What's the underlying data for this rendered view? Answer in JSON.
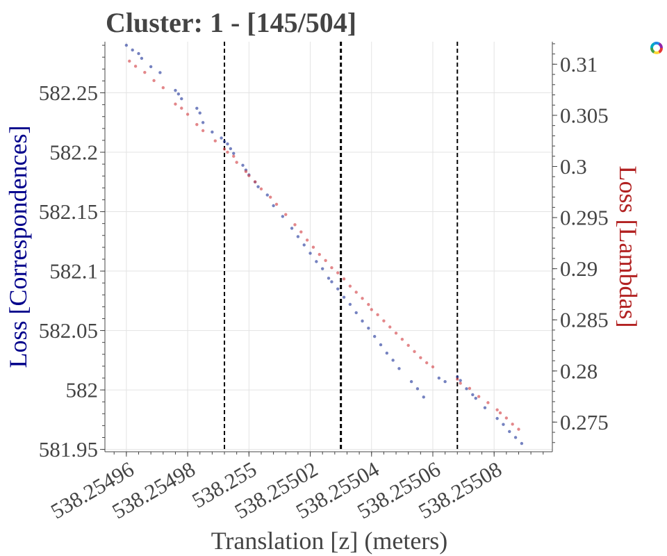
{
  "chart_data": {
    "type": "scatter",
    "title": "Cluster: 1 - [145/504]",
    "xlabel": "Translation [z] (meters)",
    "ylabel_left": "Loss [Correspondences]",
    "ylabel_right": "Loss [Lambdas]",
    "xlim": [
      538.254953,
      538.255099
    ],
    "ylim_left": [
      581.948,
      582.293
    ],
    "ylim_right": [
      0.2721,
      0.3122
    ],
    "x_ticks": [
      "538.25496",
      "538.25498",
      "538.255",
      "538.25502",
      "538.25504",
      "538.25506",
      "538.25508"
    ],
    "x_tick_values": [
      538.25496,
      538.25498,
      538.255,
      538.25502,
      538.25504,
      538.25506,
      538.25508
    ],
    "y_left_ticks": [
      "581.95",
      "582",
      "582.05",
      "582.1",
      "582.15",
      "582.2",
      "582.25"
    ],
    "y_left_tick_values": [
      581.95,
      582.0,
      582.05,
      582.1,
      582.15,
      582.2,
      582.25
    ],
    "y_right_ticks": [
      "0.275",
      "0.28",
      "0.285",
      "0.29",
      "0.295",
      "0.3",
      "0.305",
      "0.31"
    ],
    "y_right_tick_values": [
      0.275,
      0.28,
      0.285,
      0.29,
      0.295,
      0.3,
      0.305,
      0.31
    ],
    "vlines": [
      538.254992,
      538.25503,
      538.255068
    ],
    "grid": true,
    "series": [
      {
        "axis": "left",
        "color": "#2b3f9e",
        "x": [
          538.25496,
          538.254962,
          538.254964,
          538.254965,
          538.254968,
          538.254971,
          538.254976,
          538.254977,
          538.254978,
          538.254983,
          538.254984,
          538.254985,
          538.254988,
          538.254991,
          538.254992,
          538.254993,
          538.254994,
          538.254995,
          538.254998,
          538.254999,
          538.255,
          538.255002,
          538.255003,
          538.255006,
          538.255008,
          538.255011,
          538.255014,
          538.255016,
          538.255018,
          538.25502,
          538.255022,
          538.255024,
          538.255026,
          538.255027,
          538.255029,
          538.255031,
          538.255033,
          538.255035,
          538.255037,
          538.255039,
          538.255041,
          538.255043,
          538.255045,
          538.255047,
          538.255049,
          538.255053,
          538.255055,
          538.255057,
          538.255062,
          538.255064,
          538.255068,
          538.255069,
          538.255071,
          538.255073,
          538.255074,
          538.255077,
          538.255081,
          538.255083,
          538.255085,
          538.255087,
          538.255089
        ],
        "y": [
          582.29,
          582.286,
          582.283,
          582.279,
          582.272,
          582.267,
          582.252,
          582.249,
          582.245,
          582.237,
          582.233,
          582.225,
          582.217,
          582.212,
          582.209,
          582.207,
          582.203,
          582.199,
          582.189,
          582.185,
          582.181,
          582.175,
          582.171,
          582.164,
          582.155,
          582.146,
          582.136,
          582.129,
          582.122,
          582.115,
          582.108,
          582.102,
          582.094,
          582.091,
          582.085,
          582.078,
          582.072,
          582.065,
          582.058,
          582.052,
          582.045,
          582.038,
          582.031,
          582.025,
          582.018,
          582.007,
          582.001,
          581.994,
          582.01,
          582.007,
          582.011,
          582.008,
          582.001,
          581.996,
          581.993,
          581.985,
          581.976,
          581.971,
          581.965,
          581.96,
          581.955
        ]
      },
      {
        "axis": "right",
        "color": "#d4474c",
        "x": [
          538.254961,
          538.254963,
          538.254966,
          538.254969,
          538.254972,
          538.254976,
          538.254978,
          538.25498,
          538.254983,
          538.254985,
          538.254989,
          538.254992,
          538.254993,
          538.254995,
          538.254996,
          538.254999,
          538.255,
          538.255002,
          538.255004,
          538.255007,
          538.255009,
          538.255012,
          538.255015,
          538.255017,
          538.255019,
          538.255021,
          538.255023,
          538.255025,
          538.255027,
          538.255029,
          538.255031,
          538.255033,
          538.255035,
          538.255037,
          538.255039,
          538.25504,
          538.255042,
          538.255044,
          538.255046,
          538.255048,
          538.25505,
          538.255052,
          538.255054,
          538.255056,
          538.255058,
          538.25506,
          538.255068,
          538.255069,
          538.255072,
          538.255075,
          538.255078,
          538.255081,
          538.255082,
          538.255084,
          538.255086,
          538.255088
        ],
        "y": [
          0.3103,
          0.3098,
          0.3092,
          0.3084,
          0.3077,
          0.3061,
          0.3057,
          0.3051,
          0.3041,
          0.3035,
          0.3025,
          0.3017,
          0.3014,
          0.301,
          0.3004,
          0.2995,
          0.2991,
          0.2985,
          0.2978,
          0.297,
          0.2963,
          0.2953,
          0.2943,
          0.2936,
          0.2928,
          0.2921,
          0.2914,
          0.2908,
          0.2901,
          0.2896,
          0.289,
          0.2883,
          0.2877,
          0.2871,
          0.2865,
          0.286,
          0.2855,
          0.2849,
          0.2843,
          0.2837,
          0.2831,
          0.2825,
          0.2819,
          0.2813,
          0.2808,
          0.2804,
          0.2792,
          0.2788,
          0.2783,
          0.2775,
          0.2769,
          0.2762,
          0.2759,
          0.2754,
          0.2748,
          0.2743
        ]
      }
    ]
  }
}
